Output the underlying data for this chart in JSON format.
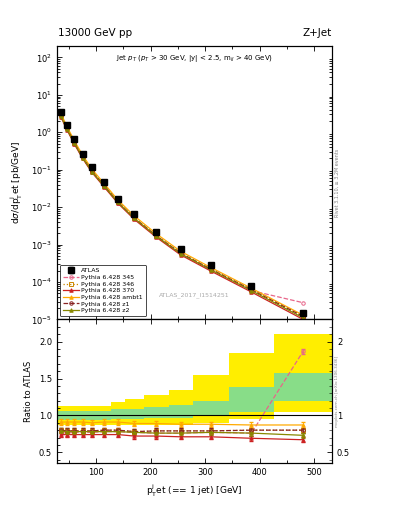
{
  "title_left": "13000 GeV pp",
  "title_right": "Z+Jet",
  "annotation": "Jet p$_T$ (p$_T$ > 30 GeV, |y| < 2.5, m$_{ll}$ > 40 GeV)",
  "watermark": "ATLAS_2017_I1514251",
  "right_label_main": "Rivet 3.1.10, ≥ 3.2M events",
  "right_label_ratio": "mcplots.cern.ch [arXiv:1306.3436]",
  "pt_centers": [
    35,
    46,
    60,
    75,
    92,
    115,
    140,
    170,
    210,
    255,
    310,
    385,
    480
  ],
  "pt_edges": [
    28,
    40,
    52,
    68,
    82,
    102,
    128,
    153,
    187,
    233,
    277,
    343,
    427,
    533
  ],
  "atlas_y": [
    3.5,
    1.6,
    0.65,
    0.27,
    0.115,
    0.046,
    0.017,
    0.0065,
    0.0022,
    0.00075,
    0.00028,
    7.8e-05,
    1.5e-05
  ],
  "atlas_yerr": [
    0.18,
    0.08,
    0.03,
    0.013,
    0.006,
    0.002,
    0.0008,
    0.0003,
    0.0001,
    3.8e-05,
    1.4e-05,
    4e-06,
    8e-07
  ],
  "p345_y": [
    2.7,
    1.22,
    0.5,
    0.208,
    0.088,
    0.036,
    0.0132,
    0.005,
    0.00168,
    0.00057,
    0.000215,
    5.9e-05,
    2.8e-05
  ],
  "p346_y": [
    2.8,
    1.26,
    0.515,
    0.214,
    0.091,
    0.037,
    0.0136,
    0.0051,
    0.00173,
    0.00059,
    0.000222,
    6.2e-05,
    1.2e-05
  ],
  "p370_y": [
    2.6,
    1.18,
    0.48,
    0.2,
    0.085,
    0.034,
    0.0126,
    0.0047,
    0.00158,
    0.00053,
    0.000198,
    5.4e-05,
    1e-05
  ],
  "pambt_y": [
    3.2,
    1.45,
    0.59,
    0.246,
    0.104,
    0.042,
    0.0154,
    0.0058,
    0.00196,
    0.00066,
    0.000246,
    6.8e-05,
    1.3e-05
  ],
  "pz1_y": [
    2.8,
    1.26,
    0.515,
    0.214,
    0.091,
    0.037,
    0.0136,
    0.0051,
    0.00173,
    0.00059,
    0.000222,
    6.2e-05,
    1.2e-05
  ],
  "pz2_y": [
    2.75,
    1.24,
    0.508,
    0.211,
    0.089,
    0.036,
    0.0133,
    0.005,
    0.00168,
    0.00057,
    0.000214,
    5.9e-05,
    1.1e-05
  ],
  "ratio_p345": [
    0.77,
    0.76,
    0.77,
    0.77,
    0.77,
    0.78,
    0.78,
    0.77,
    0.76,
    0.76,
    0.77,
    0.76,
    1.87
  ],
  "ratio_p346": [
    0.8,
    0.79,
    0.79,
    0.79,
    0.79,
    0.8,
    0.8,
    0.78,
    0.79,
    0.79,
    0.79,
    0.8,
    0.8
  ],
  "ratio_p370": [
    0.74,
    0.74,
    0.74,
    0.74,
    0.74,
    0.74,
    0.74,
    0.72,
    0.72,
    0.71,
    0.71,
    0.69,
    0.67
  ],
  "ratio_pambt": [
    0.91,
    0.91,
    0.91,
    0.91,
    0.9,
    0.91,
    0.91,
    0.89,
    0.89,
    0.88,
    0.88,
    0.87,
    0.87
  ],
  "ratio_pz1": [
    0.8,
    0.79,
    0.79,
    0.79,
    0.79,
    0.8,
    0.8,
    0.78,
    0.79,
    0.79,
    0.79,
    0.8,
    0.8
  ],
  "ratio_pz2": [
    0.79,
    0.78,
    0.78,
    0.78,
    0.78,
    0.78,
    0.78,
    0.77,
    0.76,
    0.76,
    0.77,
    0.76,
    0.73
  ],
  "band_yellow_lo": [
    0.87,
    0.87,
    0.87,
    0.87,
    0.87,
    0.87,
    0.87,
    0.87,
    0.87,
    0.87,
    0.9,
    0.95,
    1.05
  ],
  "band_yellow_hi": [
    1.13,
    1.13,
    1.13,
    1.13,
    1.13,
    1.13,
    1.18,
    1.22,
    1.27,
    1.35,
    1.55,
    1.85,
    2.1
  ],
  "band_green_lo": [
    0.94,
    0.94,
    0.94,
    0.94,
    0.94,
    0.94,
    0.95,
    0.95,
    0.96,
    0.97,
    0.99,
    1.05,
    1.2
  ],
  "band_green_hi": [
    1.06,
    1.06,
    1.06,
    1.06,
    1.06,
    1.06,
    1.08,
    1.09,
    1.11,
    1.14,
    1.2,
    1.38,
    1.58
  ],
  "color_atlas": "#000000",
  "color_p345": "#e8668a",
  "color_p346": "#cc8800",
  "color_p370": "#cc2222",
  "color_pambt": "#ffaa00",
  "color_pz1": "#882222",
  "color_pz2": "#888800",
  "ylim_main": [
    1e-05,
    200
  ],
  "ylim_ratio": [
    0.35,
    2.3
  ],
  "xlim": [
    28,
    533
  ]
}
